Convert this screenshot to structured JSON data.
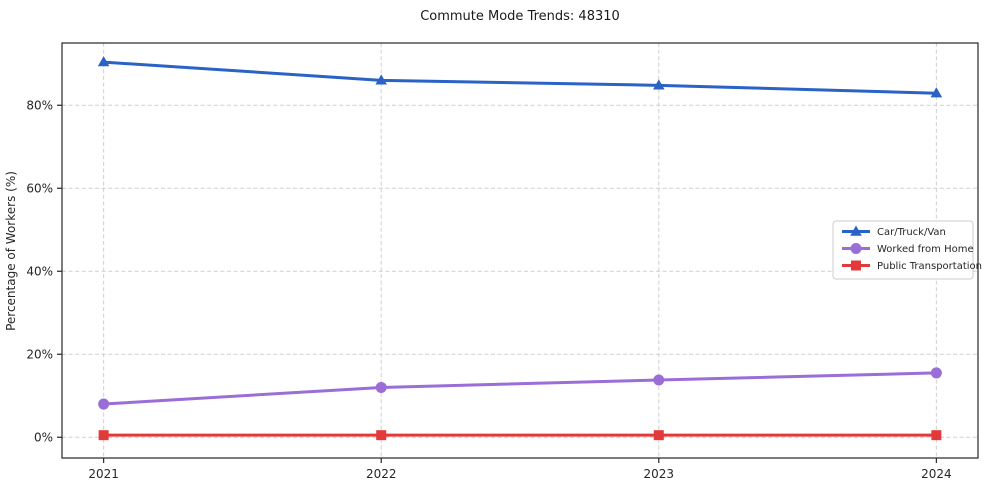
{
  "chart_data": {
    "type": "line",
    "title": "Commute Mode Trends: 48310",
    "xlabel": "",
    "ylabel": "Percentage of Workers (%)",
    "x": [
      2021,
      2022,
      2023,
      2024
    ],
    "categories": [
      "2021",
      "2022",
      "2023",
      "2024"
    ],
    "series": [
      {
        "name": "Car/Truck/Van",
        "color": "#2a62c6",
        "marker": "triangle-up",
        "values": [
          90.4,
          86.0,
          84.8,
          82.9
        ]
      },
      {
        "name": "Worked from Home",
        "color": "#9a6dd7",
        "marker": "circle",
        "values": [
          8.0,
          12.0,
          13.8,
          15.5
        ]
      },
      {
        "name": "Public Transportation",
        "color": "#e23a3a",
        "marker": "square",
        "values": [
          0.5,
          0.5,
          0.5,
          0.5
        ]
      }
    ],
    "yticks": [
      0,
      20,
      40,
      60,
      80
    ],
    "ytick_labels": [
      "0%",
      "20%",
      "40%",
      "60%",
      "80%"
    ],
    "ylim": [
      -5,
      95
    ],
    "xlim": [
      2020.85,
      2024.15
    ],
    "grid": true,
    "grid_style": "dashed",
    "grid_color": "#cfcfcf",
    "axis_color": "#262626",
    "legend_position": "center-right",
    "legend_entries": [
      "Car/Truck/Van",
      "Worked from Home",
      "Public Transportation"
    ]
  }
}
